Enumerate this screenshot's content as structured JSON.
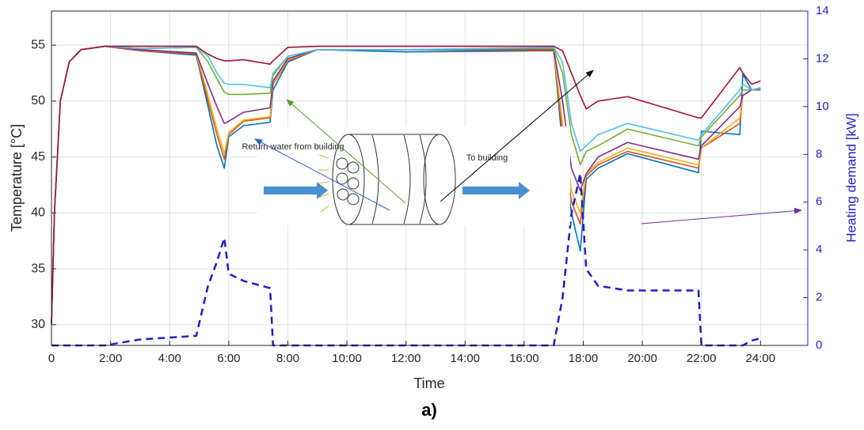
{
  "chart_data": {
    "type": "line",
    "xlabel": "Time",
    "ylabel": "Temperature [°C]",
    "y2label": "Heating demand [kW]",
    "caption": "a)",
    "annotations": [
      "Return water from building",
      "To building"
    ],
    "grid": true,
    "xlim": [
      0,
      25.6
    ],
    "xticks": [
      0,
      {
        "value": 2,
        "label": "2:00"
      },
      {
        "value": 4,
        "label": "4:00"
      },
      {
        "value": 6,
        "label": "6:00"
      },
      {
        "value": 8,
        "label": "8:00"
      },
      {
        "value": 10,
        "label": "10:00"
      },
      {
        "value": 12,
        "label": "12:00"
      },
      {
        "value": 14,
        "label": "14:00"
      },
      {
        "value": 16,
        "label": "16:00"
      },
      {
        "value": 18,
        "label": "18:00"
      },
      {
        "value": 20,
        "label": "20:00"
      },
      {
        "value": 22,
        "label": "22:00"
      },
      {
        "value": 24,
        "label": "24:00"
      }
    ],
    "ylim": [
      28.15,
      58.05
    ],
    "yticks": [
      30,
      35,
      40,
      45,
      50,
      55
    ],
    "y2lim": [
      0,
      14
    ],
    "y2ticks": [
      0,
      2,
      4,
      6,
      8,
      10,
      12,
      14
    ],
    "x": [
      0,
      0.1,
      0.3,
      0.6,
      1,
      1.8,
      3,
      4.9,
      5.3,
      5.6,
      5.85,
      6.0,
      6.5,
      7.4,
      7.5,
      8,
      9,
      12,
      17,
      17.3,
      17.6,
      17.9,
      18.1,
      18.5,
      19.5,
      21.9,
      22.0,
      23.3,
      23.4,
      23.7,
      24
    ],
    "series": [
      {
        "color": "#0072bd",
        "values": [
          30,
          40,
          50,
          53.5,
          54.6,
          54.9,
          54.5,
          54.1,
          49.5,
          46,
          44,
          46.8,
          47.8,
          48.1,
          51,
          53.5,
          54.6,
          54.4,
          54.5,
          46,
          40,
          36.6,
          43,
          44,
          45.3,
          43.6,
          47.3,
          47,
          52.4,
          51,
          51
        ]
      },
      {
        "color": "#d95319",
        "values": [
          30,
          40,
          50,
          53.5,
          54.6,
          54.9,
          54.5,
          54.2,
          50,
          47,
          44.8,
          47,
          48.2,
          48.5,
          51.5,
          53.6,
          54.6,
          54.6,
          54.5,
          47,
          41,
          39,
          43.3,
          44.3,
          45.5,
          44,
          45.8,
          48,
          50.5,
          51,
          51
        ]
      },
      {
        "color": "#edb120",
        "values": [
          30,
          40,
          50,
          53.5,
          54.6,
          54.9,
          54.6,
          54.3,
          50.5,
          47.5,
          45.3,
          47.2,
          48.3,
          48.6,
          51.6,
          53.7,
          54.6,
          54.6,
          54.6,
          48,
          42,
          40,
          43.5,
          44.5,
          45.8,
          44.3,
          45.8,
          48.5,
          50.5,
          51,
          51
        ]
      },
      {
        "color": "#7e2f8e",
        "values": [
          30,
          40,
          50,
          53.5,
          54.6,
          54.9,
          54.6,
          54.3,
          51.5,
          49.5,
          48,
          48.2,
          49,
          49.4,
          51.8,
          53.8,
          54.6,
          54.6,
          54.6,
          50,
          44,
          42,
          43.5,
          45,
          46.3,
          44.8,
          46,
          49.5,
          50.5,
          51,
          51
        ]
      },
      {
        "color": "#77ac30",
        "values": [
          30,
          40,
          50,
          53.5,
          54.6,
          54.9,
          54.7,
          54.8,
          53.5,
          52,
          50.8,
          50.6,
          50.6,
          50.7,
          52.3,
          54,
          54.6,
          54.6,
          54.7,
          52.5,
          47,
          44.3,
          45.5,
          46,
          47.5,
          46,
          46.8,
          50.5,
          51,
          51,
          51.1
        ]
      },
      {
        "color": "#4dbeee",
        "values": [
          30,
          40,
          50,
          53.5,
          54.6,
          54.9,
          54.7,
          54.8,
          54,
          52.5,
          51.6,
          51.5,
          51.5,
          51.2,
          52.5,
          54,
          54.6,
          54.6,
          54.8,
          53.5,
          48,
          45.5,
          46,
          47,
          48,
          46.5,
          47,
          51,
          51.5,
          51,
          51.2
        ]
      },
      {
        "color": "#a2142f",
        "values": [
          30,
          40,
          50,
          53.5,
          54.6,
          54.9,
          54.9,
          54.9,
          54.2,
          53.8,
          53.6,
          53.6,
          53.7,
          53.3,
          53.6,
          54.8,
          54.9,
          54.9,
          54.9,
          54.5,
          52.5,
          50.5,
          49.3,
          50,
          50.4,
          48.5,
          48.5,
          53,
          52.5,
          51.5,
          51.8
        ]
      },
      {
        "color": "#1f1fc8",
        "axis": "y2",
        "dashed": true,
        "values": [
          0,
          0,
          0,
          0,
          0,
          0,
          0.25,
          0.4,
          2.5,
          3.5,
          4.5,
          3,
          2.7,
          2.4,
          0,
          0,
          0,
          0,
          0,
          2,
          5.5,
          7.2,
          3.2,
          2.5,
          2.3,
          2.3,
          0,
          0,
          0,
          0.2,
          0.3
        ]
      }
    ]
  }
}
